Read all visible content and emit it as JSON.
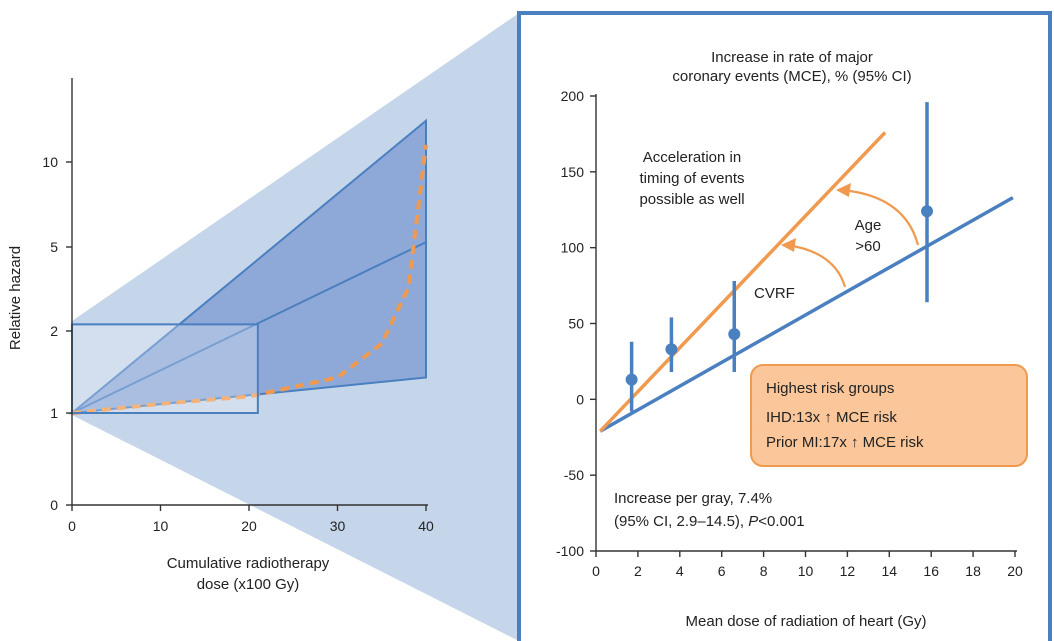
{
  "colors": {
    "blue": "#4a7fc0",
    "blue_fill": "#8ea9d8",
    "zoom_fill": "#c5d5ea",
    "orange": "#ef9a4e",
    "box_fill": "#fbc79a",
    "box_stroke": "#ef9a4e"
  },
  "chart_data": [
    {
      "type": "area",
      "title": "",
      "xlabel": [
        "Cumulative radiotherapy",
        "dose (x100 Gy)"
      ],
      "ylabel": "Relative hazard",
      "xlim": [
        0,
        40
      ],
      "xticks": [
        "0",
        "10",
        "20",
        "30",
        "40"
      ],
      "yticks": [
        "0",
        "1",
        "2",
        "5",
        "10"
      ],
      "y_scale": "log (relative hazard)",
      "grid": false,
      "series": [
        {
          "x": [
            0,
            40
          ],
          "y": [
            1,
            5.2
          ]
        },
        {
          "x": [
            0,
            40
          ],
          "y_upper": [
            1,
            14
          ],
          "y_lower": [
            1,
            1.35
          ]
        },
        {
          "x": [
            0,
            10,
            20,
            30,
            35,
            38,
            40
          ],
          "y": [
            1,
            1.08,
            1.15,
            1.35,
            1.8,
            3.2,
            11.5
          ]
        }
      ],
      "highlight_box": {
        "x": [
          0,
          21
        ],
        "y": [
          1,
          2.15
        ]
      }
    },
    {
      "type": "scatter",
      "title": [
        "Increase in rate of major",
        "coronary events (MCE), % (95% CI)"
      ],
      "xlabel": "Mean dose of radiation of heart (Gy)",
      "ylabel": "",
      "xlim": [
        0,
        20
      ],
      "ylim": [
        -100,
        200
      ],
      "xticks": [
        "0",
        "2",
        "4",
        "6",
        "8",
        "10",
        "12",
        "14",
        "16",
        "18",
        "20"
      ],
      "yticks": [
        "-100",
        "-50",
        "0",
        "50",
        "100",
        "150",
        "200"
      ],
      "grid": false,
      "points": [
        {
          "x": 1.7,
          "y": 13,
          "ci_low": -8,
          "ci_high": 38
        },
        {
          "x": 3.6,
          "y": 33,
          "ci_low": 18,
          "ci_high": 54
        },
        {
          "x": 6.6,
          "y": 43,
          "ci_low": 18,
          "ci_high": 78
        },
        {
          "x": 15.8,
          "y": 124,
          "ci_low": 64,
          "ci_high": 196
        }
      ],
      "lines": [
        {
          "x": [
            0.2,
            19.9
          ],
          "y": [
            -21,
            133
          ]
        },
        {
          "x": [
            0.2,
            13.8
          ],
          "y": [
            -21,
            176
          ]
        }
      ],
      "annotations": {
        "acceleration": [
          "Acceleration in",
          "timing of events",
          "possible as well"
        ],
        "age": [
          "Age",
          ">60"
        ],
        "cvrf": "CVRF",
        "increase": [
          "Increase per gray, 7.4%",
          "(95% CI, 2.9–14.5), ",
          "P",
          "<0.001"
        ],
        "risk_box": [
          "Highest risk groups",
          "IHD:13x ↑ MCE risk",
          "Prior MI:17x ↑ MCE risk"
        ]
      }
    }
  ]
}
